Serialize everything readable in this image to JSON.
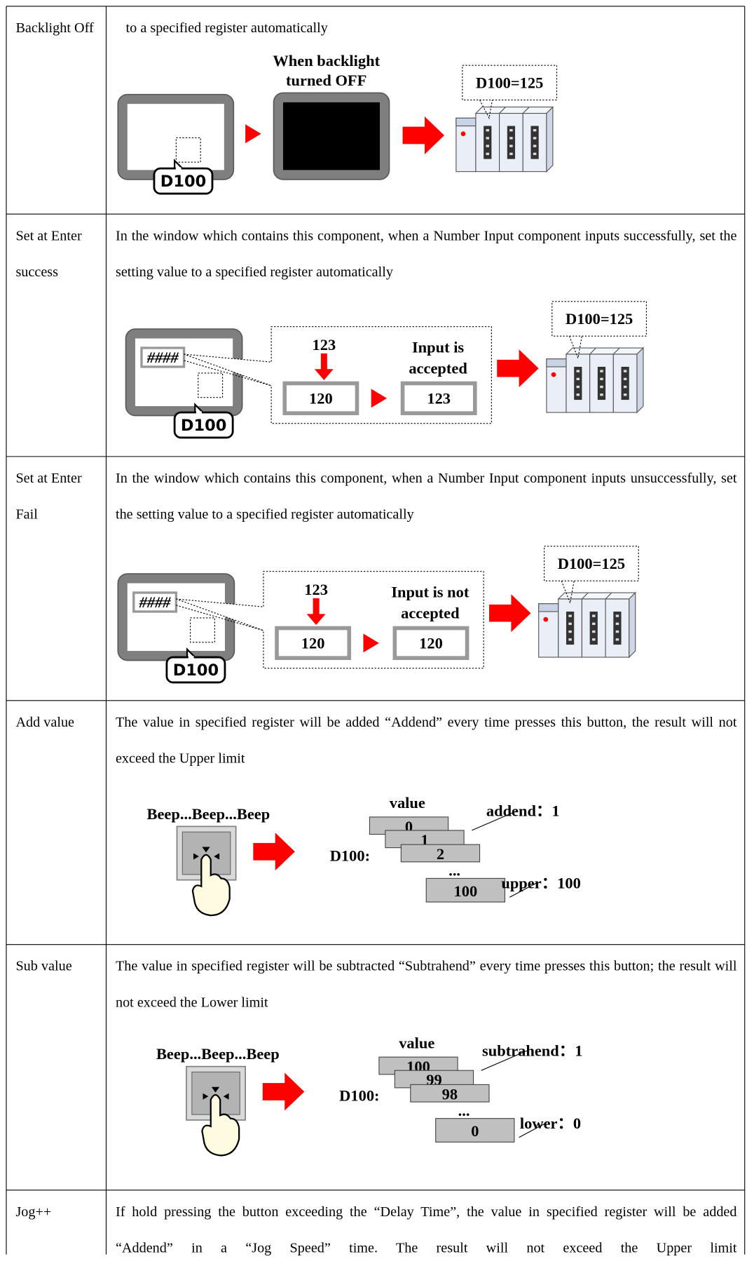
{
  "table": {
    "rows": [
      {
        "name": "Backlight Off",
        "description": "to a specified register automatically",
        "figure": {
          "register": "D100",
          "caption": [
            "When backlight",
            "turned OFF"
          ],
          "result": "D100=125"
        }
      },
      {
        "name": "Set at Enter success",
        "description": "In the window which contains this component, when a Number Input component inputs successfully, set the setting value to a specified register automatically",
        "figure": {
          "field": "####",
          "register": "D100",
          "input": "123",
          "status": [
            "Input is",
            "accepted"
          ],
          "before": "120",
          "after": "123",
          "result": "D100=125"
        }
      },
      {
        "name": "Set at Enter Fail",
        "description": "In the window which contains this component, when a Number Input component inputs unsuccessfully, set the setting value to a specified register automatically",
        "figure": {
          "field": "####",
          "register": "D100",
          "input": "123",
          "status": [
            "Input is not",
            "accepted"
          ],
          "before": "120",
          "after": "120",
          "result": "D100=125"
        }
      },
      {
        "name": "Add value",
        "description": "The value in specified register will be added “Addend” every time presses this button, the result will not exceed the Upper limit",
        "figure": {
          "sound": "Beep...Beep...Beep",
          "heading": "value",
          "register": "D100:",
          "values": [
            "0",
            "1",
            "2"
          ],
          "ellipsis": "...",
          "limit_value": "100",
          "step": "addend：1",
          "limit": "upper：100"
        }
      },
      {
        "name": "Sub value",
        "description": "The value in specified register will be subtracted “Subtrahend” every time presses this button; the result will not exceed the Lower limit",
        "figure": {
          "sound": "Beep...Beep...Beep",
          "heading": "value",
          "register": "D100:",
          "values": [
            "100",
            "99",
            "98"
          ],
          "ellipsis": "...",
          "limit_value": "0",
          "step": "subtrahend：1",
          "limit": "lower：0"
        }
      },
      {
        "name": "Jog++",
        "description": "If hold pressing the button exceeding the “Delay Time”, the value in specified register will be added “Addend” in a “Jog Speed” time. The result will not exceed the Upper limit"
      }
    ]
  }
}
